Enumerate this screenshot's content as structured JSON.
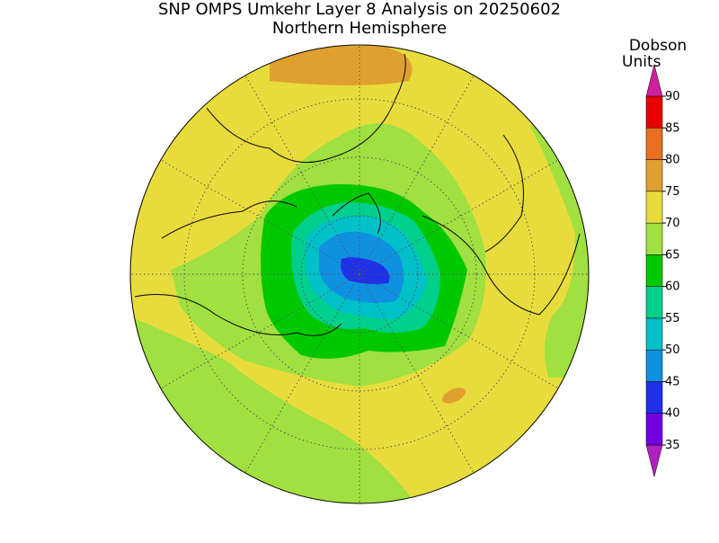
{
  "title": "SNP OMPS Umkehr Layer 8 Analysis on 20250602",
  "subtitle": "Northern Hemisphere",
  "colorbar": {
    "title": [
      "Dobson",
      "Units"
    ],
    "ticks": [
      35,
      40,
      45,
      50,
      55,
      60,
      65,
      70,
      75,
      80,
      85,
      90
    ],
    "colors": [
      "#b020c0",
      "#7000e0",
      "#2030e8",
      "#1090e0",
      "#00c0c8",
      "#00d08c",
      "#00c800",
      "#a0e040",
      "#e8dc3c",
      "#e0a030",
      "#e87020",
      "#e80000",
      "#d0209c"
    ]
  }
}
